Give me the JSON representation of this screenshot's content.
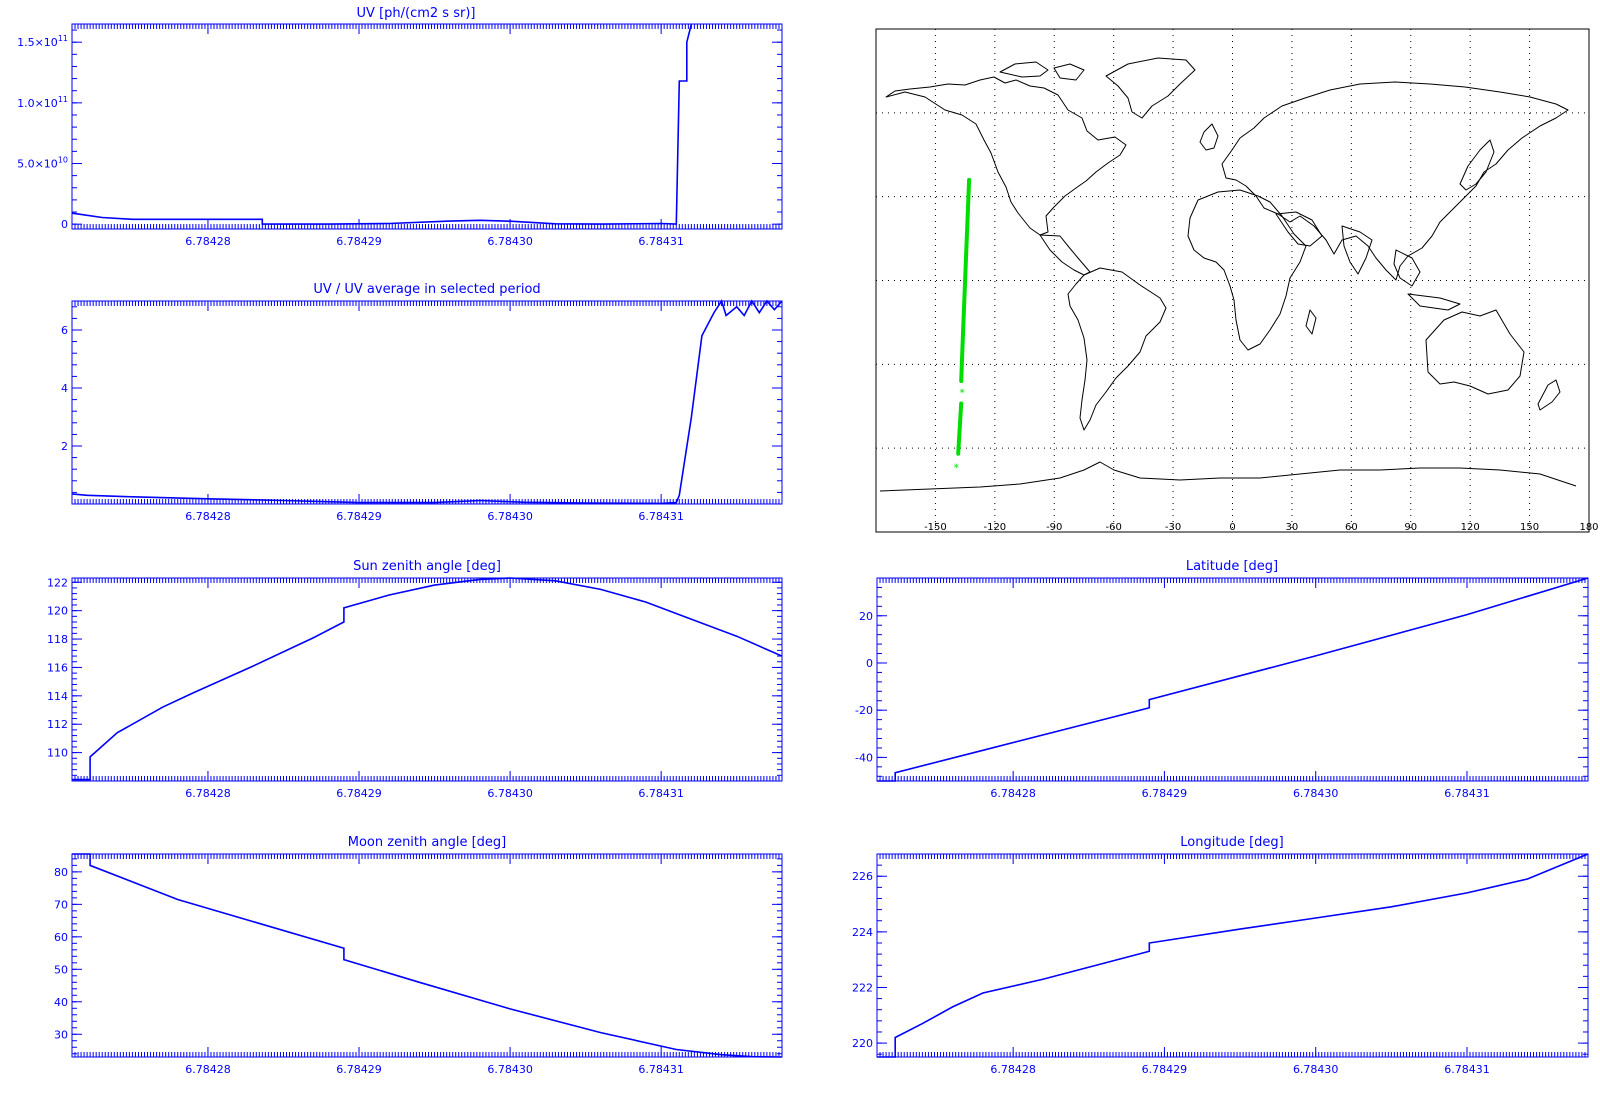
{
  "colors": {
    "axis": "#0000ff",
    "series": "#0000ff",
    "map_outline": "#000000",
    "track": "#00dd00"
  },
  "chart_data": [
    {
      "id": "uv",
      "type": "line",
      "title": "UV [ph/(cm2 s sr)]",
      "xlim": [
        6.784271,
        6.784318
      ],
      "ylim": [
        -4000000000,
        165000000000
      ],
      "x_ticks": [
        6.78428,
        6.78429,
        6.7843,
        6.78431
      ],
      "x_tick_labels": [
        "6.78428",
        "6.78429",
        "6.78430",
        "6.78431"
      ],
      "y_ticks": [
        0,
        50000000000,
        100000000000,
        150000000000
      ],
      "y_tick_labels": [
        "0",
        "5.0×10^10",
        "1.0×10^11",
        "1.5×10^11"
      ],
      "series": [
        {
          "x": [
            6.784271,
            6.7842716,
            6.784273,
            6.784275,
            6.7842836,
            6.7842836,
            6.784288,
            6.784292,
            6.784296,
            6.784298,
            6.7843,
            6.784303,
            6.784306,
            6.78431,
            6.784311,
            6.7843112,
            6.7843113,
            6.7843117,
            6.7843117,
            6.784312
          ],
          "y": [
            9000000000,
            8000000000,
            5500000000,
            4000000000,
            4000000000,
            0,
            0,
            500000000,
            2500000000,
            3200000000,
            2400000000,
            300000000,
            0,
            500000000,
            0,
            118000000000,
            118000000000,
            118000000000,
            150000000000,
            165000000000
          ]
        }
      ]
    },
    {
      "id": "uv_ratio",
      "type": "line",
      "title": "UV / UV average in selected period",
      "xlim": [
        6.784271,
        6.784318
      ],
      "ylim": [
        0,
        7
      ],
      "x_ticks": [
        6.78428,
        6.78429,
        6.7843,
        6.78431
      ],
      "x_tick_labels": [
        "6.78428",
        "6.78429",
        "6.78430",
        "6.78431"
      ],
      "y_ticks": [
        2,
        4,
        6
      ],
      "y_tick_labels": [
        "2",
        "4",
        "6"
      ],
      "series": [
        {
          "x": [
            6.784271,
            6.784272,
            6.784275,
            6.78428,
            6.784285,
            6.78429,
            6.784295,
            6.784298,
            6.784301,
            6.784305,
            6.78431,
            6.784311,
            6.7843112,
            6.784312,
            6.7843127,
            6.7843135,
            6.784314,
            6.7843143,
            6.784315,
            6.7843155,
            6.784316,
            6.7843165,
            6.784317,
            6.7843175,
            6.784318
          ],
          "y": [
            0.35,
            0.3,
            0.25,
            0.18,
            0.12,
            0.05,
            0.05,
            0.12,
            0.06,
            0.03,
            0.02,
            0.05,
            0.3,
            3.0,
            5.8,
            6.6,
            7.0,
            6.5,
            6.8,
            6.5,
            7.0,
            6.6,
            7.0,
            6.7,
            7.0
          ]
        }
      ]
    },
    {
      "id": "sza",
      "type": "line",
      "title": "Sun zenith angle [deg]",
      "xlim": [
        6.784271,
        6.784318
      ],
      "ylim": [
        108,
        122.3
      ],
      "x_ticks": [
        6.78428,
        6.78429,
        6.7843,
        6.78431
      ],
      "x_tick_labels": [
        "6.78428",
        "6.78429",
        "6.78430",
        "6.78431"
      ],
      "y_ticks": [
        110,
        112,
        114,
        116,
        118,
        120,
        122
      ],
      "y_tick_labels": [
        "110",
        "112",
        "114",
        "116",
        "118",
        "120",
        "122"
      ],
      "series": [
        {
          "x": [
            6.784271,
            6.7842722,
            6.7842722,
            6.784274,
            6.784277,
            6.784279,
            6.784283,
            6.784287,
            6.784289,
            6.784289,
            6.784292,
            6.784295,
            6.784298,
            6.7843,
            6.784303,
            6.784306,
            6.784309,
            6.784312,
            6.784315,
            6.784318
          ],
          "y": [
            108.1,
            108.1,
            109.7,
            111.4,
            113.2,
            114.2,
            116.1,
            118.1,
            119.2,
            120.2,
            121.1,
            121.8,
            122.2,
            122.3,
            122.1,
            121.5,
            120.6,
            119.4,
            118.2,
            116.8
          ]
        }
      ]
    },
    {
      "id": "lat",
      "type": "line",
      "title": "Latitude [deg]",
      "xlim": [
        6.784271,
        6.784318
      ],
      "ylim": [
        -50,
        36
      ],
      "x_ticks": [
        6.78428,
        6.78429,
        6.7843,
        6.78431
      ],
      "x_tick_labels": [
        "6.78428",
        "6.78429",
        "6.78430",
        "6.78431"
      ],
      "y_ticks": [
        -40,
        -20,
        0,
        20
      ],
      "y_tick_labels": [
        "-40",
        "-20",
        "0",
        "20"
      ],
      "series": [
        {
          "x": [
            6.784271,
            6.7842722,
            6.7842722,
            6.784278,
            6.784289,
            6.784289,
            6.7843,
            6.78431,
            6.784318
          ],
          "y": [
            -50,
            -50,
            -46.5,
            -37,
            -19,
            -15.5,
            3,
            20.5,
            36
          ]
        }
      ]
    },
    {
      "id": "mza",
      "type": "line",
      "title": "Moon zenith angle [deg]",
      "xlim": [
        6.784271,
        6.784318
      ],
      "ylim": [
        23,
        85.5
      ],
      "x_ticks": [
        6.78428,
        6.78429,
        6.7843,
        6.78431
      ],
      "x_tick_labels": [
        "6.78428",
        "6.78429",
        "6.78430",
        "6.78431"
      ],
      "y_ticks": [
        30,
        40,
        50,
        60,
        70,
        80
      ],
      "y_tick_labels": [
        "30",
        "40",
        "50",
        "60",
        "70",
        "80"
      ],
      "series": [
        {
          "x": [
            6.784271,
            6.7842722,
            6.7842722,
            6.784278,
            6.784289,
            6.784289,
            6.784294,
            6.7843,
            6.784306,
            6.784311,
            6.784314,
            6.784316,
            6.784318
          ],
          "y": [
            85.5,
            85.5,
            82,
            71.5,
            56.5,
            53,
            46,
            37.8,
            30.5,
            25.3,
            23.7,
            23.1,
            23
          ]
        }
      ]
    },
    {
      "id": "lon",
      "type": "line",
      "title": "Longitude [deg]",
      "xlim": [
        6.784271,
        6.784318
      ],
      "ylim": [
        219.5,
        226.8
      ],
      "x_ticks": [
        6.78428,
        6.78429,
        6.7843,
        6.78431
      ],
      "x_tick_labels": [
        "6.78428",
        "6.78429",
        "6.78430",
        "6.78431"
      ],
      "y_ticks": [
        220,
        222,
        224,
        226
      ],
      "y_tick_labels": [
        "220",
        "222",
        "224",
        "226"
      ],
      "series": [
        {
          "x": [
            6.784271,
            6.7842722,
            6.7842722,
            6.784274,
            6.784276,
            6.784278,
            6.784282,
            6.784289,
            6.784289,
            6.784295,
            6.7843,
            6.784305,
            6.78431,
            6.784314,
            6.784318
          ],
          "y": [
            219.5,
            219.5,
            220.2,
            220.7,
            221.3,
            221.8,
            222.3,
            223.3,
            223.6,
            224.1,
            224.5,
            224.9,
            225.4,
            225.9,
            226.8
          ]
        }
      ]
    },
    {
      "id": "map",
      "type": "scatter",
      "xlim": [
        -180,
        180
      ],
      "ylim": [
        -90,
        90
      ],
      "x_ticks": [
        -150,
        -120,
        -90,
        -60,
        -30,
        0,
        30,
        60,
        90,
        120,
        150,
        180
      ],
      "x_tick_labels": [
        "-150",
        "-120",
        "-90",
        "-60",
        "-30",
        "0",
        "30",
        "60",
        "90",
        "120",
        "150",
        "180"
      ],
      "grid": true,
      "track": [
        {
          "lon": [
            -133,
            -134,
            -135,
            -136,
            -137
          ],
          "lat": [
            36,
            18,
            0,
            -18,
            -36
          ]
        },
        {
          "lon": [
            -137,
            -137.5,
            -138,
            -138.5
          ],
          "lat": [
            -44,
            -50,
            -56,
            -62
          ]
        }
      ],
      "markers": [
        {
          "lon": -136.5,
          "lat": -40,
          "symbol": "*"
        },
        {
          "lon": -139.5,
          "lat": -67,
          "symbol": "*"
        }
      ]
    }
  ]
}
